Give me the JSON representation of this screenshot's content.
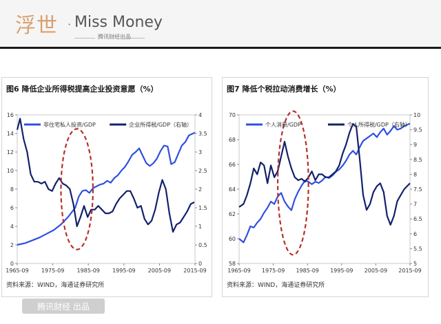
{
  "header": {
    "logo_cn": "浮世",
    "logo_dot": "·",
    "logo_en": "Miss Money",
    "logo_sub": "腾讯财经出品"
  },
  "footer": {
    "badge": "腾讯财经 出品"
  },
  "colors": {
    "bright_blue": "#2e4fe0",
    "navy": "#12206b",
    "highlight_red": "#b5302a"
  },
  "chart_data": [
    {
      "type": "line",
      "title": "图6  降低企业所得税提高企业投资意愿（%）",
      "source": "资料来源：WIND，海通证券研究所",
      "x_ticks": [
        "1965-09",
        "1975-09",
        "1985-09",
        "1995-09",
        "2005-09",
        "2015-09"
      ],
      "xlim": [
        1965.7,
        2015.7
      ],
      "ylim": [
        0,
        16
      ],
      "y_ticks": [
        0,
        2,
        4,
        6,
        8,
        10,
        12,
        14,
        16
      ],
      "y2lim": [
        0,
        4
      ],
      "y2_ticks": [
        0,
        0.5,
        1,
        1.5,
        2,
        2.5,
        3,
        3.5,
        4
      ],
      "highlight": {
        "shape": "dashed-ellipse",
        "x_center": 1982.5,
        "y_center": 8,
        "x_radius": 4.5,
        "y_radius": 6.5
      },
      "series": [
        {
          "name": "非住宅私人投资/GDP",
          "axis": "left",
          "color": "#2e4fe0",
          "points": [
            [
              1965.7,
              2.0
            ],
            [
              1968,
              2.2
            ],
            [
              1970,
              2.5
            ],
            [
              1972,
              2.8
            ],
            [
              1974,
              3.2
            ],
            [
              1976,
              3.6
            ],
            [
              1978,
              4.2
            ],
            [
              1980,
              5.0
            ],
            [
              1982,
              6.0
            ],
            [
              1983,
              7.2
            ],
            [
              1984,
              7.8
            ],
            [
              1985,
              7.9
            ],
            [
              1986,
              7.6
            ],
            [
              1987,
              8.1
            ],
            [
              1988,
              8.3
            ],
            [
              1989,
              8.5
            ],
            [
              1990,
              8.6
            ],
            [
              1991,
              8.9
            ],
            [
              1992,
              8.7
            ],
            [
              1993,
              9.2
            ],
            [
              1994,
              9.5
            ],
            [
              1995,
              10.0
            ],
            [
              1996,
              10.4
            ],
            [
              1997,
              11.0
            ],
            [
              1998,
              11.7
            ],
            [
              1999,
              12.0
            ],
            [
              2000,
              12.4
            ],
            [
              2001,
              11.6
            ],
            [
              2002,
              10.8
            ],
            [
              2003,
              10.5
            ],
            [
              2004,
              10.8
            ],
            [
              2005,
              11.3
            ],
            [
              2006,
              12.1
            ],
            [
              2007,
              12.7
            ],
            [
              2008,
              12.6
            ],
            [
              2009,
              10.7
            ],
            [
              2010,
              10.9
            ],
            [
              2011,
              11.8
            ],
            [
              2012,
              12.7
            ],
            [
              2013,
              13.1
            ],
            [
              2014,
              13.8
            ],
            [
              2015.7,
              14.1
            ]
          ]
        },
        {
          "name": "企业所得税/GDP（右轴）",
          "axis": "right",
          "color": "#12206b",
          "points": [
            [
              1965.7,
              3.6
            ],
            [
              1966.5,
              3.9
            ],
            [
              1967.5,
              3.35
            ],
            [
              1968.5,
              3.0
            ],
            [
              1969.5,
              2.4
            ],
            [
              1970.5,
              2.2
            ],
            [
              1971.5,
              2.2
            ],
            [
              1972.5,
              2.15
            ],
            [
              1973.5,
              2.2
            ],
            [
              1974.5,
              2.0
            ],
            [
              1975.5,
              1.95
            ],
            [
              1976.5,
              2.15
            ],
            [
              1977.5,
              2.3
            ],
            [
              1978.5,
              2.15
            ],
            [
              1979.5,
              2.1
            ],
            [
              1980.5,
              2.0
            ],
            [
              1981.5,
              1.6
            ],
            [
              1982.5,
              1.0
            ],
            [
              1983.5,
              1.25
            ],
            [
              1984.5,
              1.55
            ],
            [
              1985.5,
              1.25
            ],
            [
              1986.5,
              1.45
            ],
            [
              1987.5,
              1.45
            ],
            [
              1988.5,
              1.55
            ],
            [
              1989.5,
              1.45
            ],
            [
              1990.5,
              1.35
            ],
            [
              1991.5,
              1.35
            ],
            [
              1992.5,
              1.4
            ],
            [
              1993.5,
              1.6
            ],
            [
              1994.5,
              1.75
            ],
            [
              1995.5,
              1.85
            ],
            [
              1996.5,
              1.95
            ],
            [
              1997.5,
              1.95
            ],
            [
              1998.5,
              1.75
            ],
            [
              1999.5,
              1.5
            ],
            [
              2000.5,
              1.55
            ],
            [
              2001.5,
              1.2
            ],
            [
              2002.5,
              1.05
            ],
            [
              2003.5,
              1.15
            ],
            [
              2004.5,
              1.45
            ],
            [
              2005.5,
              1.9
            ],
            [
              2006.5,
              2.25
            ],
            [
              2007.5,
              2.0
            ],
            [
              2008.5,
              1.35
            ],
            [
              2009.5,
              0.85
            ],
            [
              2010.5,
              1.05
            ],
            [
              2011.5,
              1.1
            ],
            [
              2012.5,
              1.25
            ],
            [
              2013.5,
              1.4
            ],
            [
              2014.5,
              1.6
            ],
            [
              2015.5,
              1.65
            ]
          ]
        }
      ]
    },
    {
      "type": "line",
      "title": "图7  降低个税拉动消费增长（%）",
      "source": "资料来源：WIND，海通证券研究所",
      "x_ticks": [
        "1965-09",
        "1975-09",
        "1985-09",
        "1995-09",
        "2005-09",
        "2015-09"
      ],
      "xlim": [
        1965.7,
        2015.7
      ],
      "ylim": [
        58,
        70
      ],
      "y_ticks": [
        58,
        60,
        62,
        64,
        66,
        68,
        70
      ],
      "y2lim": [
        5,
        10
      ],
      "y2_ticks": [
        5,
        5.5,
        6,
        6.5,
        7,
        7.5,
        8,
        8.5,
        9,
        9.5,
        10
      ],
      "highlight": {
        "shape": "dashed-ellipse",
        "x_center": 1981.5,
        "y_center": 64.5,
        "x_radius": 4.5,
        "y_radius": 5.8
      },
      "series": [
        {
          "name": "个人消费/GDP",
          "axis": "left",
          "color": "#2e4fe0",
          "points": [
            [
              1965.7,
              60.0
            ],
            [
              1967,
              59.7
            ],
            [
              1968,
              60.3
            ],
            [
              1969,
              61.0
            ],
            [
              1970,
              60.9
            ],
            [
              1971,
              61.3
            ],
            [
              1972,
              61.6
            ],
            [
              1973,
              62.1
            ],
            [
              1974,
              62.5
            ],
            [
              1975,
              63.0
            ],
            [
              1976,
              62.8
            ],
            [
              1977,
              63.4
            ],
            [
              1978,
              63.7
            ],
            [
              1979,
              63.0
            ],
            [
              1980,
              62.6
            ],
            [
              1981,
              62.3
            ],
            [
              1982,
              63.2
            ],
            [
              1983,
              63.8
            ],
            [
              1984,
              64.3
            ],
            [
              1985,
              64.7
            ],
            [
              1986,
              64.6
            ],
            [
              1987,
              64.4
            ],
            [
              1988,
              64.6
            ],
            [
              1989,
              64.5
            ],
            [
              1990,
              64.7
            ],
            [
              1991,
              65.0
            ],
            [
              1992,
              64.9
            ],
            [
              1993,
              65.1
            ],
            [
              1994,
              65.4
            ],
            [
              1995,
              65.6
            ],
            [
              1996,
              65.9
            ],
            [
              1997,
              66.3
            ],
            [
              1998,
              66.8
            ],
            [
              1999,
              67.1
            ],
            [
              2000,
              66.8
            ],
            [
              2001,
              67.4
            ],
            [
              2002,
              67.9
            ],
            [
              2003,
              68.1
            ],
            [
              2004,
              68.3
            ],
            [
              2005,
              68.5
            ],
            [
              2006,
              68.2
            ],
            [
              2007,
              68.6
            ],
            [
              2008,
              68.9
            ],
            [
              2009,
              68.4
            ],
            [
              2010,
              68.7
            ],
            [
              2011,
              69.1
            ],
            [
              2012,
              68.8
            ],
            [
              2013,
              68.9
            ],
            [
              2014,
              69.1
            ],
            [
              2015.7,
              69.3
            ]
          ]
        },
        {
          "name": "个人所得税/GDP（右轴）",
          "axis": "right",
          "color": "#12206b",
          "points": [
            [
              1965.7,
              6.9
            ],
            [
              1967,
              7.0
            ],
            [
              1968,
              7.3
            ],
            [
              1969,
              7.7
            ],
            [
              1970,
              8.2
            ],
            [
              1971,
              8.0
            ],
            [
              1972,
              8.4
            ],
            [
              1973,
              8.3
            ],
            [
              1974,
              7.7
            ],
            [
              1975,
              8.3
            ],
            [
              1976,
              7.9
            ],
            [
              1977,
              8.1
            ],
            [
              1978,
              8.6
            ],
            [
              1979,
              9.1
            ],
            [
              1980,
              8.6
            ],
            [
              1981,
              8.2
            ],
            [
              1982,
              7.9
            ],
            [
              1983,
              7.8
            ],
            [
              1984,
              7.85
            ],
            [
              1985,
              7.75
            ],
            [
              1986,
              7.9
            ],
            [
              1987,
              8.1
            ],
            [
              1988,
              7.8
            ],
            [
              1989,
              8.0
            ],
            [
              1990,
              8.0
            ],
            [
              1991,
              7.9
            ],
            [
              1992,
              7.9
            ],
            [
              1993,
              8.0
            ],
            [
              1994,
              8.1
            ],
            [
              1995,
              8.3
            ],
            [
              1996,
              8.7
            ],
            [
              1997,
              9.0
            ],
            [
              1998,
              9.4
            ],
            [
              1999,
              9.7
            ],
            [
              2000,
              9.6
            ],
            [
              2001,
              8.5
            ],
            [
              2002,
              7.3
            ],
            [
              2003,
              6.8
            ],
            [
              2004,
              7.0
            ],
            [
              2005,
              7.4
            ],
            [
              2006,
              7.6
            ],
            [
              2007,
              7.7
            ],
            [
              2008,
              7.4
            ],
            [
              2009,
              6.6
            ],
            [
              2010,
              6.3
            ],
            [
              2011,
              6.6
            ],
            [
              2012,
              7.1
            ],
            [
              2013,
              7.3
            ],
            [
              2014,
              7.5
            ],
            [
              2015.7,
              7.7
            ]
          ]
        }
      ]
    }
  ]
}
